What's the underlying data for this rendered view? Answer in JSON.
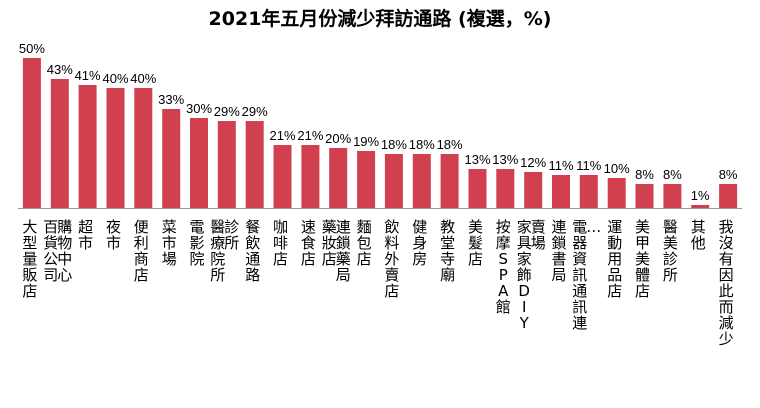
{
  "chart_data": {
    "type": "bar",
    "title": "2021年五月份減少拜訪通路 (複選，%)",
    "xlabel": "",
    "ylabel": "",
    "ylim": [
      0,
      50
    ],
    "grid": false,
    "legend": "none",
    "bar_color": "#d0404f",
    "categories": [
      "大型量販店",
      "百貨公司購物中心",
      "超市",
      "夜市",
      "便利商店",
      "菜市場",
      "電影院",
      "醫療院所診所",
      "餐飲通路",
      "咖啡店",
      "速食店",
      "藥妝店/連鎖藥局",
      "麵包店",
      "飲料外賣店",
      "健身房",
      "教堂寺廟",
      "美髮店",
      "按摩SPA館",
      "家具家飾DIY賣場",
      "連鎖書局",
      "電器資訊通訊連…",
      "運動用品店",
      "美甲美體店",
      "醫美診所",
      "其他",
      "我沒有因此而減少"
    ],
    "category_label_columns": [
      [
        "大型量販店"
      ],
      [
        "百貨公司",
        "購物中心"
      ],
      [
        "超市"
      ],
      [
        "夜市"
      ],
      [
        "便利商店"
      ],
      [
        "菜市場"
      ],
      [
        "電影院"
      ],
      [
        "醫療院所",
        "診所"
      ],
      [
        "餐飲通路"
      ],
      [
        "咖啡店"
      ],
      [
        "速食店"
      ],
      [
        "藥妝店",
        "連鎖藥局"
      ],
      [
        "麵包店"
      ],
      [
        "飲料外賣店"
      ],
      [
        "健身房"
      ],
      [
        "教堂寺廟"
      ],
      [
        "美髮店"
      ],
      [
        "按摩SPA館"
      ],
      [
        "家具家飾DIY",
        "賣場"
      ],
      [
        "連鎖書局"
      ],
      [
        "電器資訊通訊連",
        "…"
      ],
      [
        "運動用品店"
      ],
      [
        "美甲美體店"
      ],
      [
        "醫美診所"
      ],
      [
        "其他"
      ],
      [
        "我沒有因此而減少"
      ]
    ],
    "values": [
      50,
      43,
      41,
      40,
      40,
      33,
      30,
      29,
      29,
      21,
      21,
      20,
      19,
      18,
      18,
      18,
      13,
      13,
      12,
      11,
      11,
      10,
      8,
      8,
      1,
      8
    ],
    "value_labels": [
      "50%",
      "43%",
      "41%",
      "40%",
      "40%",
      "33%",
      "30%",
      "29%",
      "29%",
      "21%",
      "21%",
      "20%",
      "19%",
      "18%",
      "18%",
      "18%",
      "13%",
      "13%",
      "12%",
      "11%",
      "11%",
      "10%",
      "8%",
      "8%",
      "1%",
      "8%"
    ]
  }
}
